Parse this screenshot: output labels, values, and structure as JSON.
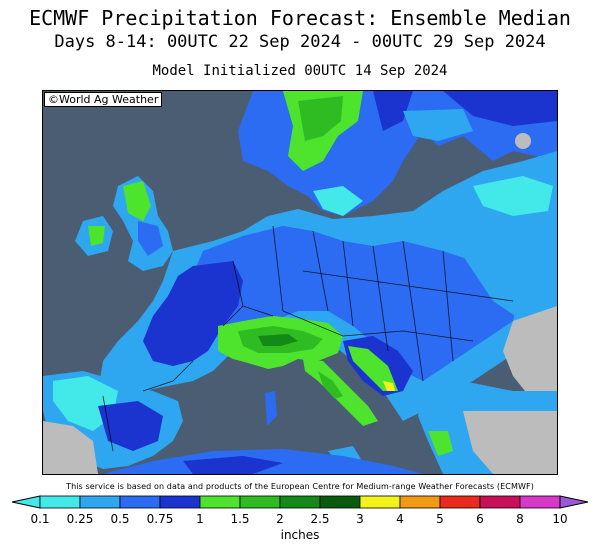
{
  "title": "ECMWF Precipitation Forecast: Ensemble Median",
  "subtitle": "Days 8-14: 00UTC 22 Sep 2024 - 00UTC 29 Sep 2024",
  "init_line": "Model Initialized 00UTC 14 Sep 2024",
  "copyright": "©World Ag Weather",
  "disclaimer": "This service is based on data and products of the European Centre for Medium-range Weather Forecasts (ECMWF)",
  "units": "inches",
  "legend": [
    {
      "label": "0.1",
      "color": "#43e8e8"
    },
    {
      "label": "0.25",
      "color": "#2ea6f0"
    },
    {
      "label": "0.5",
      "color": "#2b6cf2"
    },
    {
      "label": "0.75",
      "color": "#1b34cf"
    },
    {
      "label": "1",
      "color": "#4ee42e"
    },
    {
      "label": "1.5",
      "color": "#2fbc22"
    },
    {
      "label": "2",
      "color": "#138a17"
    },
    {
      "label": "2.5",
      "color": "#0a5a0e"
    },
    {
      "label": "3",
      "color": "#f3f31b"
    },
    {
      "label": "4",
      "color": "#f39a14"
    },
    {
      "label": "5",
      "color": "#e92a1c"
    },
    {
      "label": "6",
      "color": "#c8105a"
    },
    {
      "label": "8",
      "color": "#d838c8"
    },
    {
      "label": "10",
      "color": "#9b58d8"
    }
  ],
  "colors": {
    "sea": "#4a5d73",
    "dry": "#bcbcbc"
  }
}
